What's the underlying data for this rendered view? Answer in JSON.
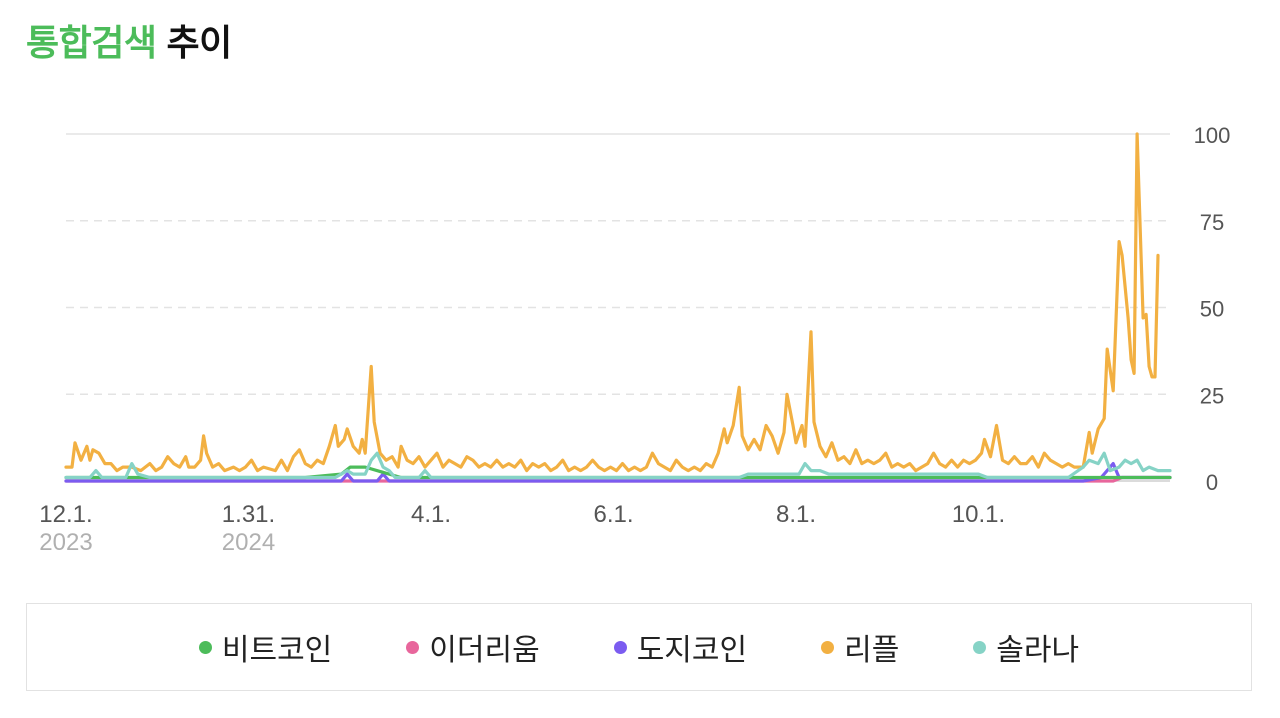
{
  "title": {
    "accent": "통합검색",
    "rest": "추이"
  },
  "chart_data": {
    "type": "line",
    "y_ticks": [
      "100",
      "75",
      "50",
      "25",
      "0"
    ],
    "ylim": [
      0,
      100
    ],
    "grid": true,
    "legend_position": "bottom",
    "x_ticks": [
      {
        "label": "12.1.",
        "sub": "2023",
        "x": 0
      },
      {
        "label": "1.31.",
        "sub": "2024",
        "x": 61
      },
      {
        "label": "4.1.",
        "sub": "",
        "x": 122
      },
      {
        "label": "6.1.",
        "sub": "",
        "x": 183
      },
      {
        "label": "8.1.",
        "sub": "",
        "x": 244
      },
      {
        "label": "10.1.",
        "sub": "",
        "x": 305
      }
    ],
    "x_max": 369,
    "series": [
      {
        "name": "비트코인",
        "color": "#4cbc5a",
        "points": [
          [
            0,
            1
          ],
          [
            80,
            1
          ],
          [
            92,
            2
          ],
          [
            95,
            4
          ],
          [
            100,
            4
          ],
          [
            108,
            2
          ],
          [
            112,
            1
          ],
          [
            369,
            1
          ]
        ]
      },
      {
        "name": "이더리움",
        "color": "#e8669c",
        "points": [
          [
            0,
            0
          ],
          [
            350,
            0
          ],
          [
            353,
            1
          ],
          [
            369,
            1
          ]
        ]
      },
      {
        "name": "도지코인",
        "color": "#7b5cf0",
        "points": [
          [
            0,
            0
          ],
          [
            92,
            0
          ],
          [
            94,
            2
          ],
          [
            96,
            0
          ],
          [
            104,
            0
          ],
          [
            106,
            2
          ],
          [
            108,
            0
          ],
          [
            340,
            0
          ],
          [
            346,
            1
          ],
          [
            350,
            5
          ],
          [
            352,
            1
          ],
          [
            369,
            1
          ]
        ]
      },
      {
        "name": "리플",
        "color": "#f2b042",
        "points": [
          [
            0,
            4
          ],
          [
            2,
            4
          ],
          [
            3,
            11
          ],
          [
            5,
            6
          ],
          [
            7,
            10
          ],
          [
            8,
            6
          ],
          [
            9,
            9
          ],
          [
            11,
            8
          ],
          [
            13,
            5
          ],
          [
            15,
            5
          ],
          [
            17,
            3
          ],
          [
            19,
            4
          ],
          [
            22,
            4
          ],
          [
            25,
            3
          ],
          [
            28,
            5
          ],
          [
            30,
            3
          ],
          [
            32,
            4
          ],
          [
            34,
            7
          ],
          [
            36,
            5
          ],
          [
            38,
            4
          ],
          [
            40,
            7
          ],
          [
            41,
            4
          ],
          [
            43,
            4
          ],
          [
            45,
            6
          ],
          [
            46,
            13
          ],
          [
            47,
            8
          ],
          [
            49,
            4
          ],
          [
            51,
            5
          ],
          [
            53,
            3
          ],
          [
            56,
            4
          ],
          [
            58,
            3
          ],
          [
            60,
            4
          ],
          [
            62,
            6
          ],
          [
            64,
            3
          ],
          [
            66,
            4
          ],
          [
            70,
            3
          ],
          [
            72,
            6
          ],
          [
            74,
            3
          ],
          [
            76,
            7
          ],
          [
            78,
            9
          ],
          [
            80,
            5
          ],
          [
            82,
            4
          ],
          [
            84,
            6
          ],
          [
            86,
            5
          ],
          [
            88,
            10
          ],
          [
            90,
            16
          ],
          [
            91,
            10
          ],
          [
            93,
            12
          ],
          [
            94,
            15
          ],
          [
            96,
            10
          ],
          [
            98,
            8
          ],
          [
            99,
            12
          ],
          [
            100,
            8
          ],
          [
            102,
            33
          ],
          [
            103,
            17
          ],
          [
            105,
            8
          ],
          [
            107,
            6
          ],
          [
            109,
            7
          ],
          [
            111,
            4
          ],
          [
            112,
            10
          ],
          [
            114,
            6
          ],
          [
            116,
            5
          ],
          [
            118,
            7
          ],
          [
            120,
            4
          ],
          [
            122,
            6
          ],
          [
            124,
            8
          ],
          [
            126,
            4
          ],
          [
            128,
            6
          ],
          [
            130,
            5
          ],
          [
            132,
            4
          ],
          [
            134,
            7
          ],
          [
            136,
            6
          ],
          [
            138,
            4
          ],
          [
            140,
            5
          ],
          [
            142,
            4
          ],
          [
            144,
            6
          ],
          [
            146,
            4
          ],
          [
            148,
            5
          ],
          [
            150,
            4
          ],
          [
            152,
            6
          ],
          [
            154,
            3
          ],
          [
            156,
            5
          ],
          [
            158,
            4
          ],
          [
            160,
            5
          ],
          [
            162,
            3
          ],
          [
            164,
            4
          ],
          [
            166,
            6
          ],
          [
            168,
            3
          ],
          [
            170,
            4
          ],
          [
            172,
            3
          ],
          [
            174,
            4
          ],
          [
            176,
            6
          ],
          [
            178,
            4
          ],
          [
            180,
            3
          ],
          [
            182,
            4
          ],
          [
            184,
            3
          ],
          [
            186,
            5
          ],
          [
            188,
            3
          ],
          [
            190,
            4
          ],
          [
            192,
            3
          ],
          [
            194,
            4
          ],
          [
            196,
            8
          ],
          [
            198,
            5
          ],
          [
            200,
            4
          ],
          [
            202,
            3
          ],
          [
            204,
            6
          ],
          [
            206,
            4
          ],
          [
            208,
            3
          ],
          [
            210,
            4
          ],
          [
            212,
            3
          ],
          [
            214,
            5
          ],
          [
            216,
            4
          ],
          [
            218,
            8
          ],
          [
            220,
            15
          ],
          [
            221,
            11
          ],
          [
            223,
            16
          ],
          [
            225,
            27
          ],
          [
            226,
            13
          ],
          [
            228,
            9
          ],
          [
            230,
            12
          ],
          [
            232,
            9
          ],
          [
            234,
            16
          ],
          [
            236,
            13
          ],
          [
            238,
            8
          ],
          [
            240,
            14
          ],
          [
            241,
            25
          ],
          [
            243,
            16
          ],
          [
            244,
            11
          ],
          [
            246,
            16
          ],
          [
            247,
            10
          ],
          [
            249,
            43
          ],
          [
            250,
            17
          ],
          [
            252,
            10
          ],
          [
            254,
            7
          ],
          [
            256,
            11
          ],
          [
            258,
            6
          ],
          [
            260,
            7
          ],
          [
            262,
            5
          ],
          [
            264,
            9
          ],
          [
            266,
            5
          ],
          [
            268,
            6
          ],
          [
            270,
            5
          ],
          [
            272,
            6
          ],
          [
            274,
            8
          ],
          [
            276,
            4
          ],
          [
            278,
            5
          ],
          [
            280,
            4
          ],
          [
            282,
            5
          ],
          [
            284,
            3
          ],
          [
            286,
            4
          ],
          [
            288,
            5
          ],
          [
            290,
            8
          ],
          [
            292,
            5
          ],
          [
            294,
            4
          ],
          [
            296,
            6
          ],
          [
            298,
            4
          ],
          [
            300,
            6
          ],
          [
            302,
            5
          ],
          [
            304,
            6
          ],
          [
            306,
            8
          ],
          [
            307,
            12
          ],
          [
            309,
            7
          ],
          [
            311,
            16
          ],
          [
            313,
            6
          ],
          [
            315,
            5
          ],
          [
            317,
            7
          ],
          [
            319,
            5
          ],
          [
            321,
            5
          ],
          [
            323,
            7
          ],
          [
            325,
            4
          ],
          [
            327,
            8
          ],
          [
            329,
            6
          ],
          [
            331,
            5
          ],
          [
            333,
            4
          ],
          [
            335,
            5
          ],
          [
            337,
            4
          ],
          [
            340,
            4
          ],
          [
            342,
            14
          ],
          [
            343,
            8
          ],
          [
            345,
            15
          ],
          [
            347,
            18
          ],
          [
            348,
            38
          ],
          [
            350,
            26
          ],
          [
            352,
            69
          ],
          [
            353,
            65
          ],
          [
            355,
            47
          ],
          [
            356,
            35
          ],
          [
            357,
            31
          ],
          [
            358,
            100
          ],
          [
            360,
            47
          ],
          [
            361,
            48
          ],
          [
            362,
            33
          ],
          [
            363,
            30
          ],
          [
            364,
            30
          ],
          [
            365,
            65
          ]
        ]
      },
      {
        "name": "솔라나",
        "color": "#86d3c6",
        "points": [
          [
            0,
            1
          ],
          [
            8,
            1
          ],
          [
            10,
            3
          ],
          [
            12,
            1
          ],
          [
            20,
            1
          ],
          [
            22,
            5
          ],
          [
            24,
            2
          ],
          [
            28,
            1
          ],
          [
            60,
            1
          ],
          [
            80,
            1
          ],
          [
            90,
            1
          ],
          [
            94,
            3
          ],
          [
            96,
            2
          ],
          [
            100,
            2
          ],
          [
            102,
            6
          ],
          [
            104,
            8
          ],
          [
            106,
            4
          ],
          [
            108,
            3
          ],
          [
            110,
            1
          ],
          [
            118,
            1
          ],
          [
            120,
            3
          ],
          [
            122,
            1
          ],
          [
            200,
            1
          ],
          [
            225,
            1
          ],
          [
            228,
            2
          ],
          [
            230,
            2
          ],
          [
            245,
            2
          ],
          [
            247,
            5
          ],
          [
            249,
            3
          ],
          [
            252,
            3
          ],
          [
            255,
            2
          ],
          [
            300,
            2
          ],
          [
            305,
            2
          ],
          [
            308,
            1
          ],
          [
            335,
            1
          ],
          [
            340,
            4
          ],
          [
            342,
            6
          ],
          [
            345,
            5
          ],
          [
            347,
            8
          ],
          [
            349,
            3
          ],
          [
            352,
            4
          ],
          [
            354,
            6
          ],
          [
            356,
            5
          ],
          [
            358,
            6
          ],
          [
            360,
            3
          ],
          [
            362,
            4
          ],
          [
            365,
            3
          ],
          [
            369,
            3
          ]
        ]
      }
    ]
  }
}
